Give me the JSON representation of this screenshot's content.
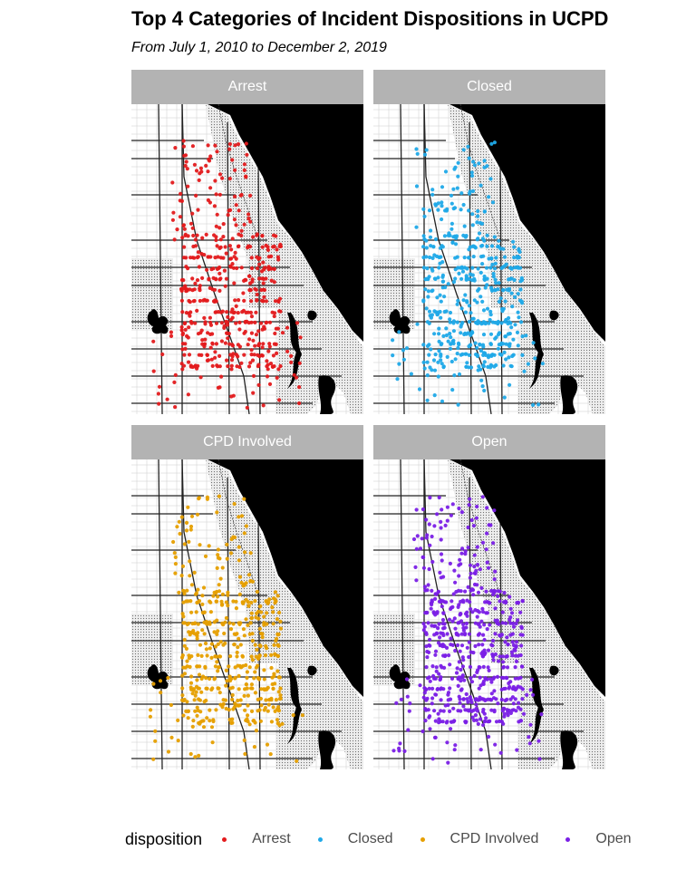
{
  "title": "Top 4 Categories of Incident Dispositions in UCPD",
  "subtitle": "From July 1, 2010 to December 2, 2019",
  "legend": {
    "title": "disposition",
    "items": [
      {
        "label": "Arrest",
        "color": "#e31a1c"
      },
      {
        "label": "Closed",
        "color": "#1fa9e8"
      },
      {
        "label": "CPD Involved",
        "color": "#e69f00"
      },
      {
        "label": "Open",
        "color": "#7a1fe6"
      }
    ]
  },
  "panels": [
    {
      "label": "Arrest",
      "color": "#e31a1c"
    },
    {
      "label": "Closed",
      "color": "#1fa9e8"
    },
    {
      "label": "CPD Involved",
      "color": "#e69f00"
    },
    {
      "label": "Open",
      "color": "#7a1fe6"
    }
  ]
}
